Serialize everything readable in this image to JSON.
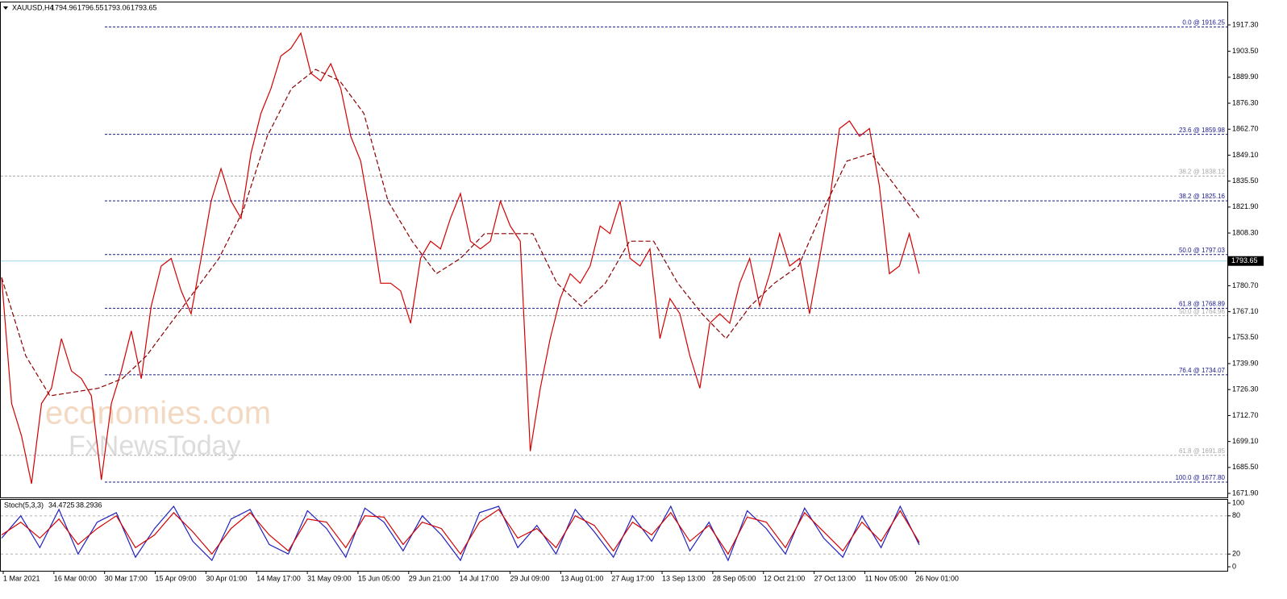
{
  "header": {
    "symbol": "XAUUSD,H4",
    "ohlc": [
      1794.96,
      1796.55,
      1793.06,
      1793.65
    ]
  },
  "watermark": [
    "economies.com",
    "FxNewsToday"
  ],
  "chart_data": [
    {
      "type": "line",
      "ylim": [
        1669.8,
        1929.1
      ],
      "yticks": [
        {
          "value": 1917.3,
          "label": "1917.30"
        },
        {
          "value": 1903.5,
          "label": "1903.50"
        },
        {
          "value": 1889.9,
          "label": "1889.90"
        },
        {
          "value": 1876.3,
          "label": "1876.30"
        },
        {
          "value": 1862.7,
          "label": "1862.70"
        },
        {
          "value": 1849.1,
          "label": "1849.10"
        },
        {
          "value": 1835.5,
          "label": "1835.50"
        },
        {
          "value": 1821.9,
          "label": "1821.90"
        },
        {
          "value": 1808.3,
          "label": "1808.30"
        },
        {
          "value": 1780.7,
          "label": "1780.70"
        },
        {
          "value": 1767.1,
          "label": "1767.10"
        },
        {
          "value": 1753.5,
          "label": "1753.50"
        },
        {
          "value": 1739.9,
          "label": "1739.90"
        },
        {
          "value": 1726.3,
          "label": "1726.30"
        },
        {
          "value": 1712.7,
          "label": "1712.70"
        },
        {
          "value": 1699.1,
          "label": "1699.10"
        },
        {
          "value": 1685.5,
          "label": "1685.50"
        },
        {
          "value": 1671.9,
          "label": "1671.90"
        }
      ],
      "current_price": 1793.65,
      "current_price_color": "#9ed6ea",
      "series": [
        {
          "color": "#d40000",
          "style": "solid",
          "values": [
            1785,
            1719,
            1702,
            1677,
            1719,
            1727,
            1753,
            1736,
            1732,
            1723,
            1679,
            1719,
            1736,
            1757,
            1732,
            1770,
            1791,
            1795,
            1778,
            1766,
            1795,
            1825,
            1842,
            1825,
            1816,
            1850,
            1871,
            1884,
            1901,
            1905,
            1913,
            1892,
            1888,
            1897,
            1884,
            1859,
            1846,
            1816,
            1782,
            1782,
            1778,
            1761,
            1795,
            1804,
            1800,
            1816,
            1829,
            1804,
            1800,
            1804,
            1825,
            1812,
            1804,
            1694,
            1727,
            1753,
            1774,
            1787,
            1782,
            1791,
            1812,
            1808,
            1825,
            1795,
            1791,
            1800,
            1753,
            1774,
            1766,
            1744,
            1727,
            1761,
            1766,
            1761,
            1782,
            1795,
            1770,
            1787,
            1808,
            1791,
            1795,
            1766,
            1795,
            1825,
            1863,
            1867,
            1859,
            1863,
            1833,
            1787,
            1791,
            1808,
            1787
          ]
        },
        {
          "color": "#8b0000",
          "style": "dashed",
          "values": [
            1785,
            1744,
            1723,
            1725,
            1727,
            1732,
            1744,
            1761,
            1778,
            1795,
            1820,
            1859,
            1884,
            1894,
            1888,
            1871,
            1825,
            1804,
            1787,
            1795,
            1808,
            1808,
            1808,
            1782,
            1770,
            1782,
            1804,
            1804,
            1782,
            1766,
            1753,
            1770,
            1782,
            1791,
            1820,
            1846,
            1850,
            1833,
            1816
          ]
        }
      ],
      "fib_levels": [
        {
          "label": "0.0 @ 1916.25",
          "value": 1916.25,
          "color": "#1a1a8c"
        },
        {
          "label": "23.6 @ 1859.98",
          "value": 1859.98,
          "color": "#1a1a8c"
        },
        {
          "label": "38.2 @ 1825.16",
          "value": 1825.16,
          "color": "#1a1a8c"
        },
        {
          "label": "50.0 @ 1797.03",
          "value": 1797.03,
          "color": "#1a1a8c"
        },
        {
          "label": "61.8 @ 1768.89",
          "value": 1768.89,
          "color": "#1a1a8c"
        },
        {
          "label": "76.4 @ 1734.07",
          "value": 1734.07,
          "color": "#1a1a8c"
        },
        {
          "label": "100.0 @ 1677.80",
          "value": 1677.8,
          "color": "#1a1a8c"
        },
        {
          "label": "38.2 @ 1838.12",
          "value": 1838.12,
          "color": "#aaaaaa"
        },
        {
          "label": "50.0 @ 1764.96",
          "value": 1764.96,
          "color": "#aaaaaa"
        },
        {
          "label": "61.8 @ 1691.85",
          "value": 1691.85,
          "color": "#aaaaaa"
        }
      ]
    },
    {
      "type": "line",
      "title": "Stoch(5,3,3)",
      "title_values": [
        34.4725,
        38.2936
      ],
      "ylim": [
        -6.3,
        105.1
      ],
      "yticks": [
        100,
        80,
        20,
        0
      ],
      "levels": [
        80,
        20
      ],
      "xtick_labels": [
        "1 Mar 2021",
        "16 Mar 00:00",
        "30 Mar 17:00",
        "15 Apr 09:00",
        "30 Apr 01:00",
        "14 May 17:00",
        "31 May 09:00",
        "15 Jun 05:00",
        "29 Jun 21:00",
        "14 Jul 17:00",
        "29 Jul 09:00",
        "13 Aug 01:00",
        "27 Aug 17:00",
        "13 Sep 13:00",
        "28 Sep 05:00",
        "12 Oct 21:00",
        "27 Oct 13:00",
        "11 Nov 05:00",
        "26 Nov 01:00"
      ],
      "series": [
        {
          "color": "#2020c0",
          "style": "solid",
          "values": [
            45,
            80,
            30,
            90,
            20,
            70,
            85,
            15,
            60,
            95,
            40,
            10,
            75,
            90,
            35,
            20,
            88,
            60,
            15,
            92,
            70,
            25,
            80,
            50,
            10,
            85,
            95,
            30,
            65,
            20,
            90,
            55,
            15,
            80,
            40,
            95,
            25,
            70,
            10,
            88,
            60,
            20,
            92,
            45,
            15,
            80,
            30,
            95,
            34.4725
          ]
        },
        {
          "color": "#d40000",
          "style": "solid",
          "values": [
            50,
            70,
            45,
            75,
            35,
            60,
            80,
            30,
            50,
            85,
            55,
            20,
            60,
            85,
            50,
            25,
            75,
            70,
            30,
            80,
            78,
            35,
            70,
            60,
            20,
            70,
            90,
            45,
            60,
            30,
            80,
            65,
            25,
            70,
            50,
            85,
            40,
            65,
            20,
            78,
            70,
            30,
            85,
            55,
            25,
            70,
            40,
            88,
            38.2936
          ]
        }
      ]
    }
  ]
}
